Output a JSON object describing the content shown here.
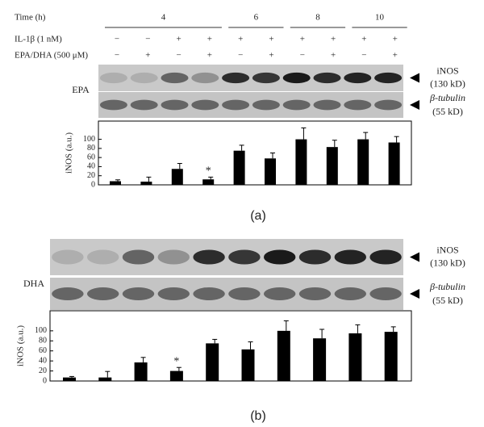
{
  "header": {
    "time_label": "Time (h)",
    "time_groups": [
      "4",
      "6",
      "8",
      "10"
    ],
    "il_label": "IL-1β (1 nM)",
    "il": [
      "−",
      "−",
      "+",
      "+",
      "+",
      "+",
      "+",
      "+",
      "+",
      "+"
    ],
    "epa_label": "EPA/DHA (500 μM)",
    "epa": [
      "−",
      "+",
      "−",
      "+",
      "−",
      "+",
      "−",
      "+",
      "−",
      "+"
    ]
  },
  "blots": [
    {
      "name": "EPA",
      "inos": "iNOS",
      "inos_kd": "(130 kD)",
      "tubulin": "β-tubulin",
      "tubulin_kd": "(55 kD)",
      "caption": "(a)"
    },
    {
      "name": "DHA",
      "inos": "iNOS",
      "inos_kd": "(130 kD)",
      "tubulin": "β-tubulin",
      "tubulin_kd": "(55 kD)",
      "caption": "(b)"
    }
  ],
  "chart_data": [
    {
      "type": "bar",
      "ylabel": "iNOS (a.u.)",
      "color": "#000000",
      "ylim": [
        0,
        140
      ],
      "yticks": [
        0,
        20,
        40,
        60,
        80,
        100
      ],
      "values": [
        8,
        7,
        35,
        12,
        75,
        58,
        100,
        83,
        100,
        93
      ],
      "errors": [
        3,
        10,
        12,
        5,
        12,
        12,
        25,
        15,
        15,
        13
      ],
      "annotation": "*"
    },
    {
      "type": "bar",
      "ylabel": "iNOS (a.u.)",
      "color": "#000000",
      "ylim": [
        0,
        140
      ],
      "yticks": [
        0,
        20,
        40,
        60,
        80,
        100
      ],
      "values": [
        7,
        7,
        37,
        20,
        75,
        63,
        100,
        85,
        95,
        98
      ],
      "errors": [
        2,
        12,
        10,
        7,
        8,
        15,
        20,
        18,
        17,
        10
      ],
      "annotation": "*"
    }
  ]
}
